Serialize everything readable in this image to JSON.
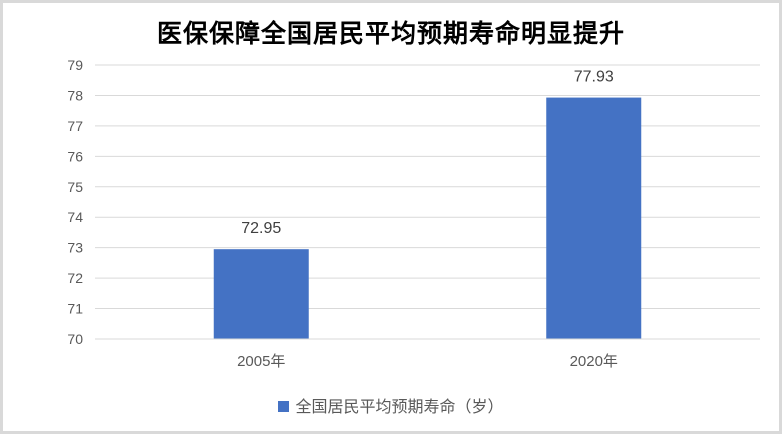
{
  "chart_data": {
    "type": "bar",
    "title": "医保保障全国居民平均预期寿命明显提升",
    "categories": [
      "2005年",
      "2020年"
    ],
    "series": [
      {
        "name": "全国居民平均预期寿命（岁）",
        "values": [
          72.95,
          77.93
        ],
        "color": "#4472c4"
      }
    ],
    "data_labels": [
      "72.95",
      "77.93"
    ],
    "ylim": [
      70,
      79
    ],
    "yticks": [
      "70",
      "71",
      "72",
      "73",
      "74",
      "75",
      "76",
      "77",
      "78",
      "79"
    ],
    "grid": true,
    "legend": "bottom",
    "xlabel": "",
    "ylabel": ""
  }
}
